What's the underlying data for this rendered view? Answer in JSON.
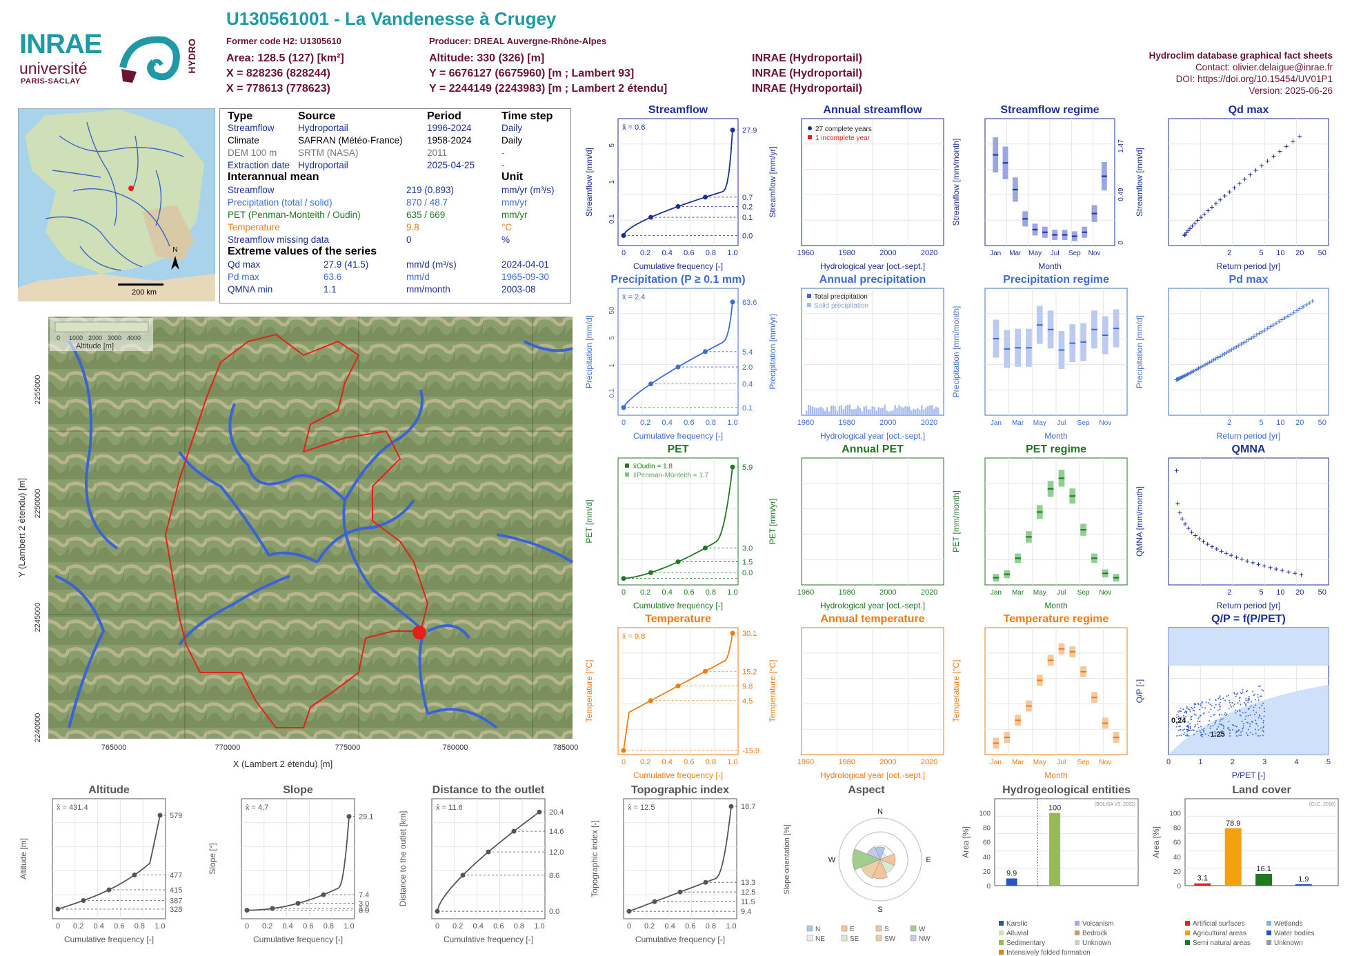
{
  "header": {
    "title": "U130561001 - La Vandenesse à Crugey",
    "former_code": "Former code H2: U1305610",
    "producer": "Producer: DREAL Auvergne-Rhône-Alpes",
    "area": "Area: 128.5 (127) [km²]",
    "x": "X = 828236 (828244)",
    "x2": "X = 778613 (778623)",
    "altitude": "Altitude: 330 (326) [m]",
    "y": "Y = 6676127 (6675960) [m ; Lambert 93]",
    "y2": "Y = 2244149 (2243983) [m ; Lambert 2 étendu]",
    "src1": "INRAE (Hydroportail)",
    "src2": "INRAE (Hydroportail)",
    "src3": "INRAE (Hydroportail)",
    "db": "Hydroclim database graphical fact sheets",
    "contact": "Contact: olivier.delaigue@inrae.fr",
    "doi": "DOI: https://doi.org/10.15454/UV01P1",
    "version": "Version: 2025-06-26",
    "logo_inrae": "INRAE",
    "logo_univ": "université",
    "logo_ps": "PARIS-SACLAY",
    "logo_hydro": "HYDRO"
  },
  "colors": {
    "teal": "#1e9aa6",
    "maroon": "#6b1331",
    "streamflow": "#1c2f96",
    "precip": "#3d6cd6",
    "pet": "#1e7a22",
    "temp": "#ef7b13",
    "grey": "#555555"
  },
  "inset_map": {
    "scale": "200 km",
    "north": "N"
  },
  "info": {
    "h_type": "Type",
    "h_source": "Source",
    "h_period": "Period",
    "h_step": "Time step",
    "rows": [
      {
        "type": "Streamflow",
        "source": "Hydroportail",
        "period": "1996-2024",
        "step": "Daily"
      },
      {
        "type": "Climate",
        "source": "SAFRAN (Météo-France)",
        "period": "1958-2024",
        "step": "Daily"
      },
      {
        "type": "DEM 100 m",
        "source": "SRTM (NASA)",
        "period": "2011",
        "step": "-"
      },
      {
        "type": "Extraction date",
        "source": "Hydroportail",
        "period": "2025-04-25",
        "step": "-"
      }
    ],
    "h_mean": "Interannual mean",
    "h_unit": "Unit",
    "means": [
      {
        "label": "Streamflow",
        "value": "219 (0.893)",
        "unit": "mm/yr (m³/s)"
      },
      {
        "label": "Precipitation (total / solid)",
        "value": "870 / 48.7",
        "unit": "mm/yr"
      },
      {
        "label": "PET (Penman-Monteith / Oudin)",
        "value": "635 / 669",
        "unit": "mm/yr"
      },
      {
        "label": "Temperature",
        "value": "9.8",
        "unit": "°C"
      },
      {
        "label": "Streamflow missing data",
        "value": "0",
        "unit": "%"
      }
    ],
    "h_ext": "Extreme values of the series",
    "extremes": [
      {
        "label": "Qd max",
        "value": "27.9 (41.5)",
        "unit": "mm/d (m³/s)",
        "date": "2024-04-01"
      },
      {
        "label": "Pd max",
        "value": "63.6",
        "unit": "mm/d",
        "date": "1965-09-30"
      },
      {
        "label": "QMNA min",
        "value": "1.1",
        "unit": "mm/month",
        "date": "2003-08"
      }
    ]
  },
  "map": {
    "xlabel": "X (Lambert 2 étendu) [m]",
    "ylabel": "Y (Lambert 2 étendu) [m]",
    "xticks": [
      "765000",
      "770000",
      "775000",
      "780000",
      "785000"
    ],
    "yticks": [
      "2240000",
      "2245000",
      "2250000",
      "2255000"
    ],
    "legend_title": "Altitude [m]",
    "legend_ticks": [
      "0",
      "1000",
      "2000",
      "3000",
      "4000"
    ]
  },
  "chart_data": [
    {
      "id": "streamflow",
      "type": "line",
      "title": "Streamflow",
      "xlabel": "Cumulative frequency [-]",
      "ylabel": "Streamflow [mm/d]",
      "scale": "log",
      "mean": "x̄ = 0.6",
      "right_ticks": [
        "27.9",
        "0.7",
        "0.2",
        "0.1",
        "0.0"
      ],
      "y_ticks": [
        "0.1",
        "1",
        "5"
      ],
      "x": [
        0,
        0.25,
        0.5,
        0.75,
        1
      ],
      "y": [
        0.01,
        0.1,
        0.2,
        0.7,
        27.9
      ]
    },
    {
      "id": "annual_streamflow",
      "type": "bar",
      "title": "Annual streamflow",
      "xlabel": "Hydrological year [oct.-sept.]",
      "ylabel": "Streamflow [mm/yr]",
      "legend": [
        "27 complete years",
        "1 incomplete year"
      ],
      "ylim": [
        0,
        400
      ],
      "xticks": [
        "1960",
        "1980",
        "2000",
        "2020"
      ]
    },
    {
      "id": "streamflow_regime",
      "type": "bar",
      "title": "Streamflow regime",
      "xlabel": "Month",
      "ylabel": "Streamflow [mm/month]",
      "ylabel2": "Streamflow [m³/s]",
      "categories": [
        "Jan",
        "Mar",
        "May",
        "Jul",
        "Sep",
        "Nov"
      ],
      "medians": [
        34,
        31,
        21,
        10,
        6,
        5,
        4,
        4,
        3.5,
        5,
        12,
        26
      ],
      "right_ticks": [
        "1.47",
        "0.49",
        "0"
      ]
    },
    {
      "id": "qd_max",
      "type": "scatter",
      "title": "Qd max",
      "xlabel": "Return period [yr]",
      "ylabel": "Streamflow [mm/d]",
      "xticks": [
        "2",
        "5",
        "10",
        "20",
        "50"
      ],
      "ylim": [
        0,
        19
      ]
    },
    {
      "id": "precipitation",
      "type": "line",
      "title": "Precipitation (P ≥ 0.1 mm)",
      "xlabel": "Cumulative frequency [-]",
      "ylabel": "Precipitation [mm/d]",
      "mean": "x̄ = 2.4",
      "right_ticks": [
        "63.6",
        "5.4",
        "2.0",
        "0.4",
        "0.1"
      ],
      "y_ticks": [
        "0.1",
        "1",
        "5",
        "50"
      ]
    },
    {
      "id": "annual_precip",
      "type": "bar",
      "title": "Annual precipitation",
      "xlabel": "Hydrological year [oct.-sept.]",
      "ylabel": "Precipitation [mm/yr]",
      "legend": [
        "Total precipitation",
        "Solid precipitation"
      ],
      "xticks": [
        "1960",
        "1980",
        "2000",
        "2020"
      ]
    },
    {
      "id": "precip_regime",
      "type": "bar",
      "title": "Precipitation regime",
      "xlabel": "Month",
      "ylabel": "Precipitation [mm/month]",
      "medians": [
        67,
        58,
        59,
        59,
        79,
        75,
        57,
        63,
        64,
        75,
        70,
        76
      ]
    },
    {
      "id": "pd_max",
      "type": "scatter",
      "title": "Pd max",
      "xlabel": "Return period [yr]",
      "ylabel": "Precipitation [mm/d]",
      "xticks": [
        "2",
        "5",
        "10",
        "20",
        "50"
      ],
      "ylim": [
        0,
        70
      ]
    },
    {
      "id": "pet",
      "type": "line",
      "title": "PET",
      "xlabel": "Cumulative frequency [-]",
      "ylabel": "PET [mm/d]",
      "legend": [
        "x̄Oudin = 1.8",
        "x̄Penman-Monteith = 1.7"
      ],
      "right_ticks": [
        "5.9",
        "3.0",
        "1.5",
        "0.0"
      ]
    },
    {
      "id": "annual_pet",
      "type": "bar",
      "title": "Annual PET",
      "xlabel": "Hydrological year [oct.-sept.]",
      "ylabel": "PET [mm/yr]",
      "xticks": [
        "1960",
        "1980",
        "2000",
        "2020"
      ]
    },
    {
      "id": "pet_regime",
      "type": "bar",
      "title": "PET regime",
      "xlabel": "Month",
      "ylabel": "PET [mm/month]",
      "medians": [
        8,
        12,
        30,
        54,
        82,
        108,
        120,
        100,
        62,
        30,
        13,
        8
      ]
    },
    {
      "id": "qmna",
      "type": "scatter",
      "title": "QMNA",
      "xlabel": "Return period [yr]",
      "ylabel": "QMNA [mm/month]",
      "xticks": [
        "2",
        "5",
        "10",
        "20",
        "50"
      ]
    },
    {
      "id": "temperature",
      "type": "line",
      "title": "Temperature",
      "xlabel": "Cumulative frequency [-]",
      "ylabel": "Temperature [°C]",
      "mean": "x̄ = 9.8",
      "right_ticks": [
        "30.1",
        "15.2",
        "9.8",
        "4.5",
        "-15.9"
      ]
    },
    {
      "id": "annual_temp",
      "type": "bar",
      "title": "Annual temperature",
      "xlabel": "Hydrological year [oct.-sept.]",
      "ylabel": "Temperature [°C]",
      "xticks": [
        "1960",
        "1980",
        "2000",
        "2020"
      ]
    },
    {
      "id": "temp_regime",
      "type": "bar",
      "title": "Temperature regime",
      "xlabel": "Month",
      "ylabel": "Temperature [°C]",
      "medians": [
        2,
        3,
        6,
        8.5,
        13,
        16.5,
        18.5,
        18,
        14.5,
        10,
        5.5,
        3
      ]
    },
    {
      "id": "qp",
      "type": "scatter",
      "title": "Q/P = f(P/PET)",
      "xlabel": "P/PET [-]",
      "ylabel": "Q/P [-]",
      "labels": [
        "0.24",
        "1.25"
      ]
    },
    {
      "id": "altitude",
      "type": "line",
      "title": "Altitude",
      "xlabel": "Cumulative frequency [-]",
      "ylabel": "Altitude [m]",
      "mean": "x̄ = 431.4",
      "right_ticks": [
        "579",
        "477",
        "415",
        "387",
        "328"
      ]
    },
    {
      "id": "slope",
      "type": "line",
      "title": "Slope",
      "xlabel": "Cumulative frequency [-]",
      "ylabel": "Slope [°]",
      "mean": "x̄ = 4.7",
      "right_ticks": [
        "29.1",
        "7.4",
        "3.0",
        "1.6",
        "0.0"
      ]
    },
    {
      "id": "distance",
      "type": "line",
      "title": "Distance to the outlet",
      "xlabel": "Cumulative frequency [-]",
      "ylabel": "Distance to the outlet [km]",
      "mean": "x̄ = 11.6",
      "right_ticks": [
        "20.4",
        "14.6",
        "12.0",
        "8.6",
        "0.0"
      ]
    },
    {
      "id": "topo",
      "type": "line",
      "title": "Topographic index",
      "xlabel": "Cumulative frequency [-]",
      "ylabel": "Topographic index [-]",
      "mean": "x̄ = 12.5",
      "right_ticks": [
        "18.7",
        "13.3",
        "12.5",
        "11.5",
        "9.4"
      ]
    },
    {
      "id": "aspect",
      "type": "pie",
      "title": "Aspect",
      "ylabel": "Slope orientation [%]",
      "directions": [
        "N",
        "NE",
        "E",
        "SE",
        "S",
        "SW",
        "W",
        "NW"
      ]
    },
    {
      "id": "hydrogeo",
      "type": "bar",
      "title": "Hydrogeological entities",
      "ylabel": "Area [%]",
      "source": "(BDLISA V3, 2022)",
      "values": [
        9.9,
        100
      ],
      "legend": [
        "Karstic",
        "Alluvial",
        "Sedimentary",
        "Intensively folded formation",
        "Volcanism",
        "Bedrock",
        "Unknown"
      ]
    },
    {
      "id": "landcover",
      "type": "bar",
      "title": "Land cover",
      "ylabel": "Area [%]",
      "source": "(CLC, 2018)",
      "values": [
        3.1,
        78.9,
        16.1,
        1.9
      ],
      "legend": [
        "Artificial surfaces",
        "Agricultural areas",
        "Semi natural areas",
        "Wetlands",
        "Water bodies",
        "Unknown"
      ]
    }
  ]
}
